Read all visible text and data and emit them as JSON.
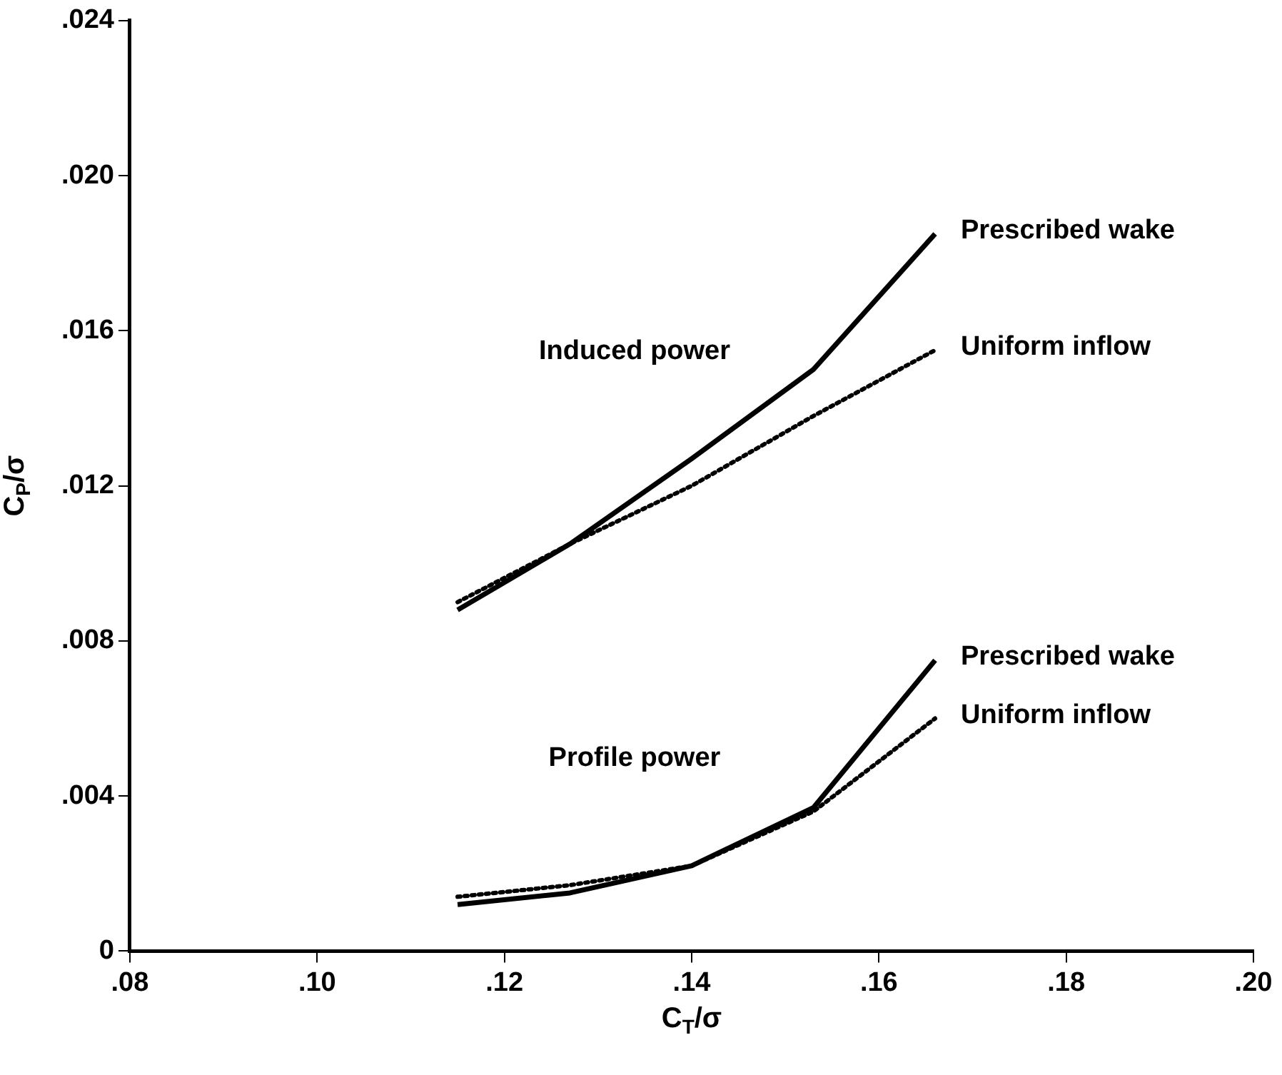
{
  "chart_data": {
    "type": "line",
    "xlabel": "C$_{T}$/σ",
    "ylabel": "C$_{P}$/σ",
    "x": [
      0.115,
      0.127,
      0.14,
      0.153,
      0.166
    ],
    "series": [
      {
        "name": "Prescribed wake",
        "color": "#000000",
        "line_style": "solid",
        "values": [
          0.0088,
          0.0105,
          0.0127,
          0.015,
          0.0185
        ]
      },
      {
        "name": "Uniform inflow",
        "color": "#000000",
        "line_style": "dotted",
        "values": [
          0.009,
          0.0105,
          0.012,
          0.0138,
          0.0155
        ]
      },
      {
        "name": "Prescribed wake",
        "color": "#000000",
        "line_style": "solid",
        "values": [
          0.0012,
          0.0015,
          0.0022,
          0.0037,
          0.0075
        ]
      },
      {
        "name": "Uniform inflow",
        "color": "#000000",
        "line_style": "dotted",
        "values": [
          0.0014,
          0.0017,
          0.0022,
          0.0036,
          0.006
        ]
      }
    ],
    "annotations": [
      "Induced power",
      "Profile power"
    ],
    "xlim": [
      0.08,
      0.2
    ],
    "ylim": [
      0,
      0.024
    ],
    "xticks": [
      {
        "value": 0.08,
        "label": ".08"
      },
      {
        "value": 0.1,
        "label": ".10"
      },
      {
        "value": 0.12,
        "label": ".12"
      },
      {
        "value": 0.14,
        "label": ".14"
      },
      {
        "value": 0.16,
        "label": ".16"
      },
      {
        "value": 0.18,
        "label": ".18"
      },
      {
        "value": 0.2,
        "label": ".20"
      }
    ],
    "yticks": [
      0,
      {
        "value": 0.004,
        "label": ".004"
      },
      {
        "value": 0.008,
        "label": ".008"
      },
      {
        "value": 0.012,
        "label": ".012"
      },
      {
        "value": 0.016,
        "label": ".016"
      },
      {
        "value": 0.02,
        "label": ".020"
      },
      {
        "value": 0.024,
        "label": ".024"
      }
    ],
    "grid": false,
    "legend": false,
    "marker": "none"
  }
}
